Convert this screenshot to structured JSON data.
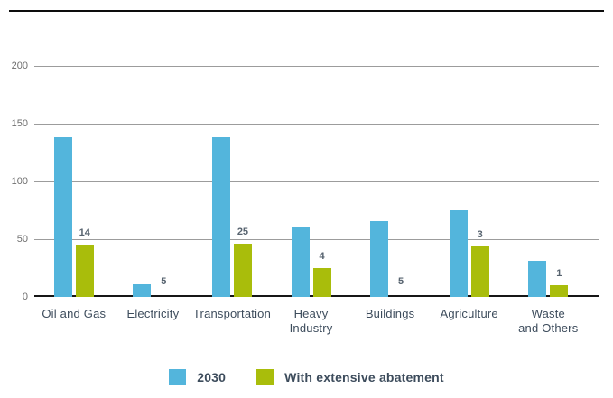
{
  "chart_data": {
    "type": "bar",
    "title": "",
    "xlabel": "",
    "ylabel": "",
    "categories": [
      "Oil and Gas",
      "Electricity",
      "Transportation",
      "Heavy Industry",
      "Buildings",
      "Agriculture",
      "Waste and Others"
    ],
    "category_label_lines": [
      [
        "Oil and Gas"
      ],
      [
        "Electricity"
      ],
      [
        "Transportation"
      ],
      [
        "Heavy",
        "Industry"
      ],
      [
        "Buildings"
      ],
      [
        "Agriculture"
      ],
      [
        "Waste",
        "and Others"
      ]
    ],
    "series": [
      {
        "name": "2030",
        "color": "#53B5DC",
        "bar_heights_axis_units": [
          138,
          11,
          138,
          61,
          66,
          75,
          31
        ],
        "data_labels": [
          "",
          "",
          "",
          "",
          "",
          "",
          ""
        ]
      },
      {
        "name": "With extensive abatement",
        "color": "#A9BD0B",
        "bar_heights_axis_units": [
          45,
          0,
          46,
          25,
          0,
          44,
          10
        ],
        "data_labels": [
          "14",
          "5",
          "25",
          "4",
          "5",
          "3",
          "1"
        ]
      }
    ],
    "ylim": [
      0,
      200
    ],
    "yticks": [
      200,
      150,
      100,
      50,
      0
    ],
    "grid": true,
    "legend_position": "bottom-center"
  },
  "colors": {
    "grid": "#9c9c9c",
    "baseline": "#161616",
    "top_rule": "#0d0d0d",
    "axis_text": "#6d6d6d",
    "category_text": "#3d4c5c",
    "value_label_text": "#57636f"
  }
}
